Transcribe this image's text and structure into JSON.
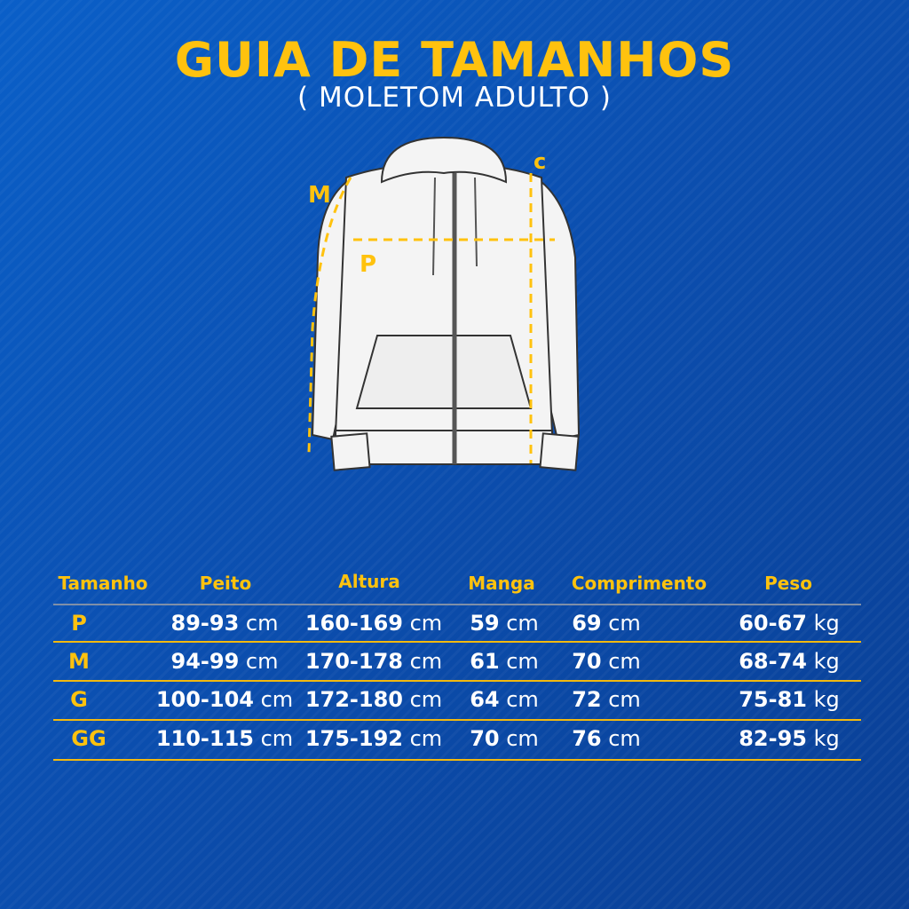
{
  "title": "GUIA DE TAMANHOS",
  "subtitle": "( MOLETOM ADULTO )",
  "diagram_labels": {
    "m": "M",
    "c": "C",
    "p": "P"
  },
  "colors": {
    "accent": "#ffc20e",
    "background": "#0b4fb0",
    "text": "#ffffff"
  },
  "table": {
    "headers": [
      "Tamanho",
      "Peito",
      "Altura",
      "Manga",
      "Comprimento",
      "Peso"
    ],
    "rows": [
      {
        "size": "P",
        "peito": "89-93",
        "altura": "160-169",
        "manga": "59",
        "comprimento": "69",
        "peso": "60-67"
      },
      {
        "size": "M",
        "peito": "94-99",
        "altura": "170-178",
        "manga": "61",
        "comprimento": "70",
        "peso": "68-74"
      },
      {
        "size": "G",
        "peito": "100-104",
        "altura": "172-180",
        "manga": "64",
        "comprimento": "72",
        "peso": "75-81"
      },
      {
        "size": "GG",
        "peito": "110-115",
        "altura": "175-192",
        "manga": "70",
        "comprimento": "76",
        "peso": "82-95"
      }
    ],
    "unit_cm": "cm",
    "unit_kg": "kg"
  }
}
